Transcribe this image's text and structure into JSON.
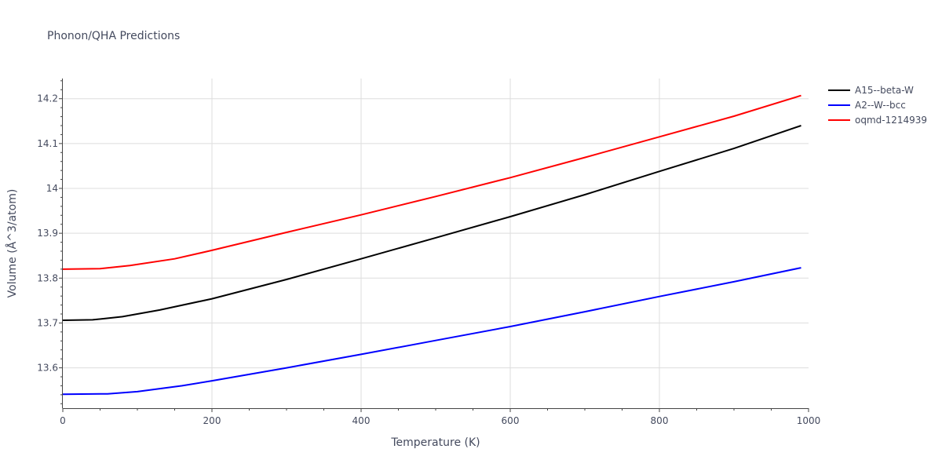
{
  "chart_data": {
    "type": "line",
    "title": "Phonon/QHA Predictions",
    "xlabel": "Temperature (K)",
    "ylabel": "Volume (Å^3/atom)",
    "xlim": [
      0,
      1000
    ],
    "ylim": [
      13.51,
      14.245
    ],
    "xticks": [
      0,
      200,
      400,
      600,
      800,
      1000
    ],
    "xtick_labels": [
      "0",
      "200",
      "400",
      "600",
      "800",
      "1000"
    ],
    "yticks": [
      13.6,
      13.7,
      13.8,
      13.9,
      14.0,
      14.1,
      14.2
    ],
    "ytick_labels": [
      "13.6",
      "13.7",
      "13.8",
      "13.9",
      "14",
      "14.1",
      "14.2"
    ],
    "grid": true,
    "legend_position": "top-right",
    "series": [
      {
        "name": "A15--beta-W",
        "color": "#000000",
        "x": [
          0,
          40,
          80,
          130,
          200,
          300,
          400,
          500,
          600,
          700,
          800,
          900,
          990
        ],
        "y": [
          13.706,
          13.707,
          13.714,
          13.729,
          13.754,
          13.797,
          13.843,
          13.89,
          13.937,
          13.986,
          14.038,
          14.089,
          14.14
        ]
      },
      {
        "name": "A2--W--bcc",
        "color": "#0000ff",
        "x": [
          0,
          60,
          100,
          160,
          200,
          300,
          400,
          500,
          600,
          700,
          800,
          900,
          990
        ],
        "y": [
          13.541,
          13.542,
          13.547,
          13.56,
          13.571,
          13.6,
          13.63,
          13.661,
          13.692,
          13.725,
          13.759,
          13.792,
          13.823
        ]
      },
      {
        "name": "oqmd-1214939",
        "color": "#ff0000",
        "x": [
          0,
          50,
          90,
          150,
          200,
          300,
          400,
          500,
          600,
          700,
          800,
          900,
          990
        ],
        "y": [
          13.82,
          13.821,
          13.828,
          13.843,
          13.862,
          13.902,
          13.941,
          13.982,
          14.024,
          14.069,
          14.115,
          14.161,
          14.207
        ]
      }
    ]
  }
}
